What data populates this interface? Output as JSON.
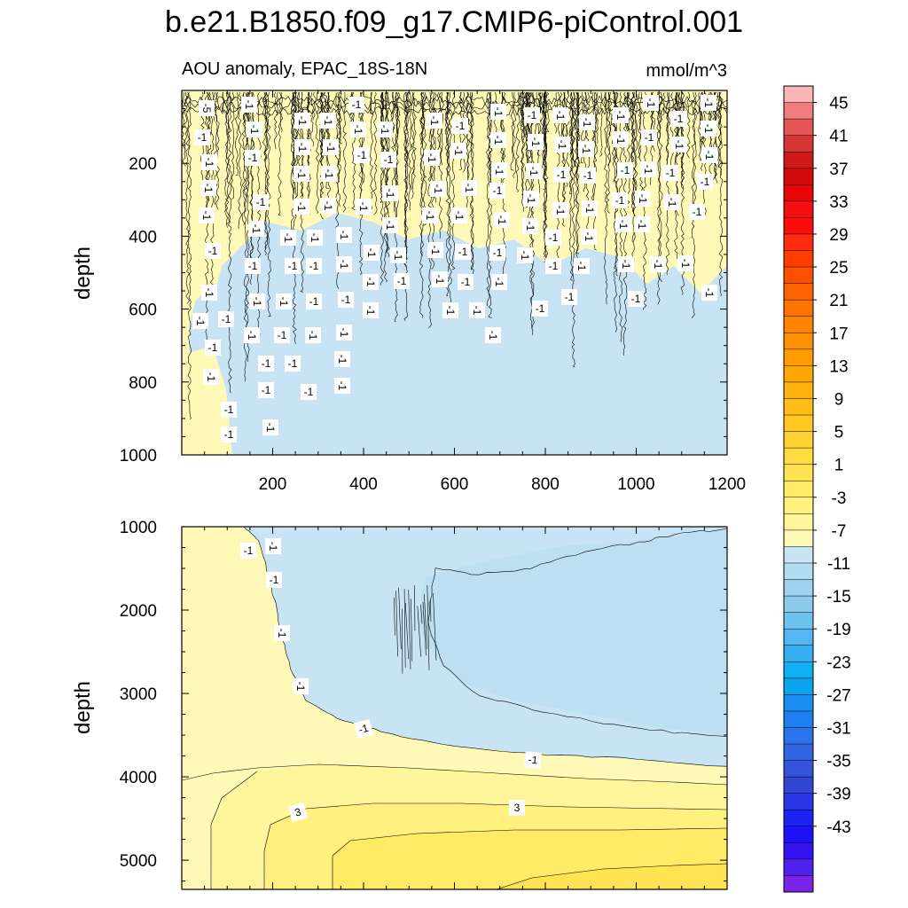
{
  "chart_data": {
    "type": "contour",
    "title": "b.e21.B1850.f09_g17.CMIP6-piControl.001",
    "subtitle_left": "AOU anomaly, EPAC_18S-18N",
    "subtitle_right": "mmol/m^3",
    "panels": [
      {
        "name": "upper",
        "ylabel": "depth",
        "xlim": [
          0,
          1200
        ],
        "ylim": [
          1000,
          0
        ],
        "x_ticks": [
          200,
          400,
          600,
          800,
          1000,
          1200
        ],
        "y_ticks": [
          200,
          400,
          600,
          800,
          1000
        ],
        "contour_labels": [
          "-5",
          "-1"
        ]
      },
      {
        "name": "lower",
        "ylabel": "depth",
        "xlim": [
          0,
          1200
        ],
        "ylim": [
          5350,
          1000
        ],
        "y_ticks": [
          1000,
          2000,
          3000,
          4000,
          5000
        ],
        "contour_labels": [
          "-1",
          "-1",
          "3",
          "3"
        ]
      }
    ],
    "colorbar": {
      "labels": [
        "45",
        "41",
        "37",
        "33",
        "29",
        "25",
        "21",
        "17",
        "13",
        "9",
        "5",
        "1",
        "-3",
        "-7",
        "-11",
        "-15",
        "-19",
        "-23",
        "-27",
        "-31",
        "-35",
        "-39",
        "-43"
      ],
      "colors": [
        "#fbb5b5",
        "#ee7d7d",
        "#e35656",
        "#d83636",
        "#cf1a1a",
        "#d20a0a",
        "#e80505",
        "#f51010",
        "#fc0c0c",
        "#ff2b0f",
        "#ff3c00",
        "#ff5000",
        "#ff6200",
        "#ff7400",
        "#ff8400",
        "#ff9100",
        "#ff9c00",
        "#ffa600",
        "#ffb10c",
        "#ffbd18",
        "#ffc825",
        "#ffd233",
        "#ffdb42",
        "#ffe352",
        "#ffeb66",
        "#fff07f",
        "#fff59a",
        "#fff9b8",
        "#c8e4f4",
        "#b2dcf0",
        "#9fd2ee",
        "#8ccaec",
        "#6fc1ee",
        "#54b7f1",
        "#35afef",
        "#10b0f3",
        "#0aa3ee",
        "#1b8ff0",
        "#1e7fef",
        "#2b73e8",
        "#3264e2",
        "#3354d9",
        "#3345d4",
        "#2a35e6",
        "#1c23f2",
        "#1f11f6",
        "#3314f0",
        "#5021ec",
        "#7a24e6"
      ]
    }
  }
}
